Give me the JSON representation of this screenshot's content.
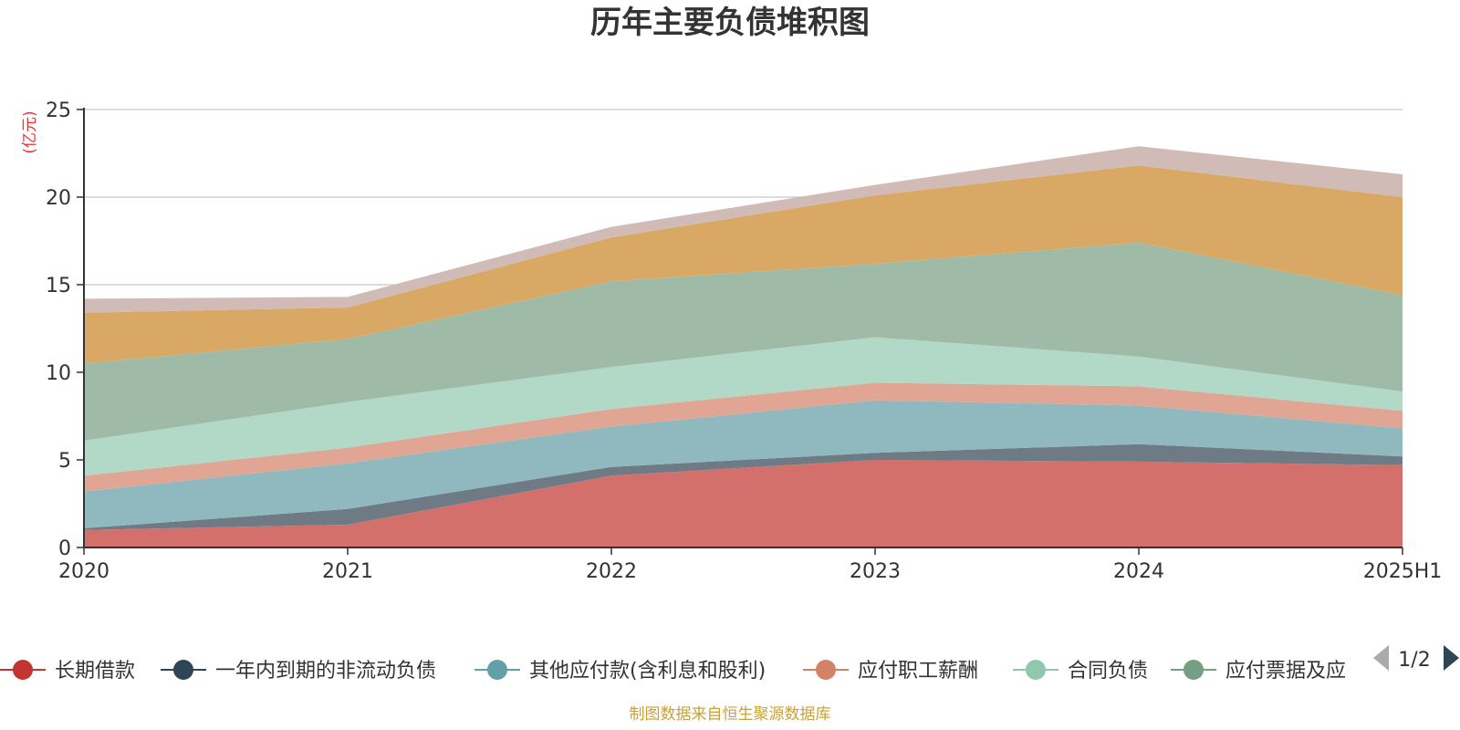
{
  "title": "历年主要负债堆积图",
  "source": "制图数据来自恒生聚源数据库",
  "legend_page": "1/2",
  "chart_data": {
    "type": "area",
    "stacked": true,
    "title": "历年主要负债堆积图",
    "ylabel": "(亿元)",
    "xlabel": "",
    "categories": [
      "2020",
      "2021",
      "2022",
      "2023",
      "2024",
      "2025H1"
    ],
    "ylim": [
      0,
      25
    ],
    "yticks": [
      0,
      5,
      10,
      15,
      20,
      25
    ],
    "grid": true,
    "legend_position": "bottom",
    "series": [
      {
        "name": "长期借款",
        "color": "#c23531",
        "fill": "#d4706c",
        "values": [
          1.0,
          1.3,
          4.1,
          5.0,
          4.9,
          4.7
        ]
      },
      {
        "name": "一年内到期的非流动负债",
        "color": "#2f4554",
        "fill": "#6e7b85",
        "values": [
          0.1,
          0.9,
          0.5,
          0.4,
          1.0,
          0.5
        ]
      },
      {
        "name": "其他应付款(含利息和股利)",
        "color": "#61a0a8",
        "fill": "#90b9bf",
        "values": [
          2.1,
          2.6,
          2.3,
          3.0,
          2.2,
          1.6
        ]
      },
      {
        "name": "应付职工薪酬",
        "color": "#d48265",
        "fill": "#e0a593",
        "values": [
          0.9,
          0.9,
          1.0,
          1.0,
          1.1,
          1.0
        ]
      },
      {
        "name": "合同负债",
        "color": "#91c7ae",
        "fill": "#b2d8c7",
        "values": [
          2.0,
          2.6,
          2.4,
          2.6,
          1.7,
          1.1
        ]
      },
      {
        "name": "应付票据及应付账款",
        "color": "#749f83",
        "fill": "#9fbba8",
        "values": [
          4.4,
          3.6,
          4.9,
          4.2,
          6.5,
          5.5
        ]
      },
      {
        "name": "",
        "color": "#ca8622",
        "fill": "#d8a864",
        "values": [
          2.9,
          1.8,
          2.5,
          3.9,
          4.4,
          5.6
        ]
      },
      {
        "name": "",
        "color": "#bda29a",
        "fill": "#d1bbb6",
        "values": [
          0.8,
          0.6,
          0.6,
          0.6,
          1.1,
          1.3
        ]
      }
    ]
  },
  "legend": [
    {
      "label": "长期借款",
      "color": "#c23531"
    },
    {
      "label": "一年内到期的非流动负债",
      "color": "#2f4554"
    },
    {
      "label": "其他应付款(含利息和股利)",
      "color": "#61a0a8"
    },
    {
      "label": "应付职工薪酬",
      "color": "#d48265"
    },
    {
      "label": "合同负债",
      "color": "#91c7ae"
    },
    {
      "label": "应付票据及应",
      "color": "#749f83"
    }
  ]
}
